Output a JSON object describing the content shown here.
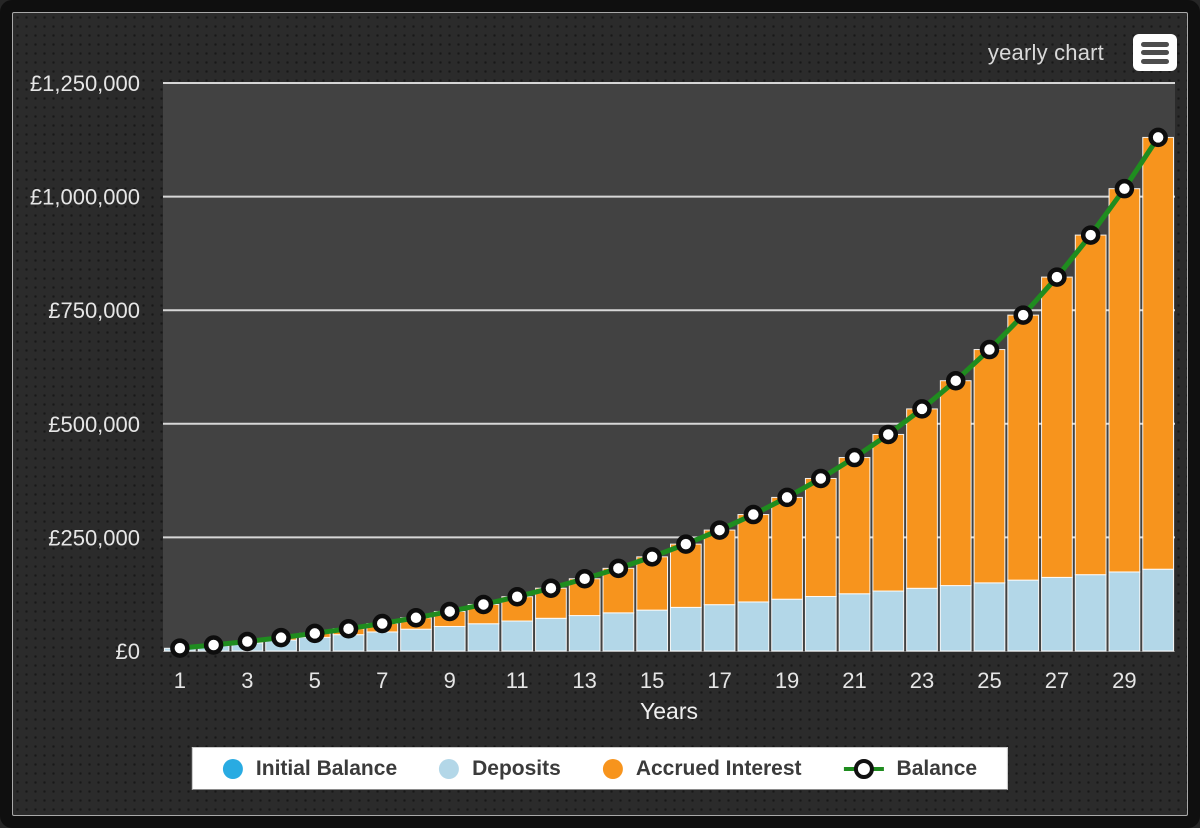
{
  "header": {
    "title": "yearly chart",
    "menu_icon": "hamburger-menu-icon"
  },
  "colors": {
    "panel_background": "#2b2b2b",
    "plot_background": "#424242",
    "gridline": "#f2f2f2",
    "axis_text": "#e6e6e6",
    "initial_balance": "#29ABE2",
    "deposits": "#B3D7E8",
    "accrued_interest": "#F7941D",
    "balance_line": "#1F8C1F",
    "marker_fill": "#ffffff",
    "marker_ring": "#0d0d0d",
    "legend_background": "#ffffff",
    "legend_text": "#3b3b3b"
  },
  "chart_data": {
    "type": "bar",
    "stacked": true,
    "title": "yearly chart",
    "xlabel": "Years",
    "ylabel": "",
    "grid": "horizontal",
    "legend_position": "bottom",
    "x": [
      1,
      2,
      3,
      4,
      5,
      6,
      7,
      8,
      9,
      10,
      11,
      12,
      13,
      14,
      15,
      16,
      17,
      18,
      19,
      20,
      21,
      22,
      23,
      24,
      25,
      26,
      27,
      28,
      29,
      30
    ],
    "x_ticks": [
      1,
      3,
      5,
      7,
      9,
      11,
      13,
      15,
      17,
      19,
      21,
      23,
      25,
      27,
      29
    ],
    "ylim": [
      0,
      1250000
    ],
    "y_ticks": [
      0,
      250000,
      500000,
      750000,
      1000000,
      1250000
    ],
    "y_tick_labels": [
      "£0",
      "£250,000",
      "£500,000",
      "£750,000",
      "£1,000,000",
      "£1,250,000"
    ],
    "series": [
      {
        "name": "Initial Balance",
        "type": "bar",
        "color": "#29ABE2",
        "values": [
          0,
          0,
          0,
          0,
          0,
          0,
          0,
          0,
          0,
          0,
          0,
          0,
          0,
          0,
          0,
          0,
          0,
          0,
          0,
          0,
          0,
          0,
          0,
          0,
          0,
          0,
          0,
          0,
          0,
          0
        ]
      },
      {
        "name": "Deposits",
        "type": "bar",
        "color": "#B3D7E8",
        "values": [
          6000,
          12000,
          18000,
          24000,
          30000,
          36000,
          42000,
          48000,
          54000,
          60000,
          66000,
          72000,
          78000,
          84000,
          90000,
          96000,
          102000,
          108000,
          114000,
          120000,
          126000,
          132000,
          138000,
          144000,
          150000,
          156000,
          162000,
          168000,
          174000,
          180000
        ]
      },
      {
        "name": "Accrued Interest",
        "type": "bar",
        "color": "#F7941D",
        "values": [
          283,
          1223,
          2891,
          5361,
          8719,
          13056,
          18475,
          25091,
          33027,
          42422,
          53430,
          66219,
          80975,
          97905,
          117235,
          139218,
          164131,
          192282,
          224008,
          259684,
          299725,
          344587,
          394775,
          450846,
          513417,
          583168,
          660851,
          747297,
          843423,
          950244
        ]
      },
      {
        "name": "Balance",
        "type": "line",
        "color": "#1F8C1F",
        "marker": "circle",
        "values": [
          6283,
          13223,
          20891,
          29361,
          38719,
          49056,
          60475,
          73091,
          87027,
          102422,
          119430,
          138219,
          158975,
          181905,
          207235,
          235218,
          266131,
          300282,
          338008,
          379684,
          425725,
          476587,
          532775,
          594846,
          663417,
          739168,
          822851,
          915297,
          1017423,
          1130244
        ]
      }
    ]
  }
}
